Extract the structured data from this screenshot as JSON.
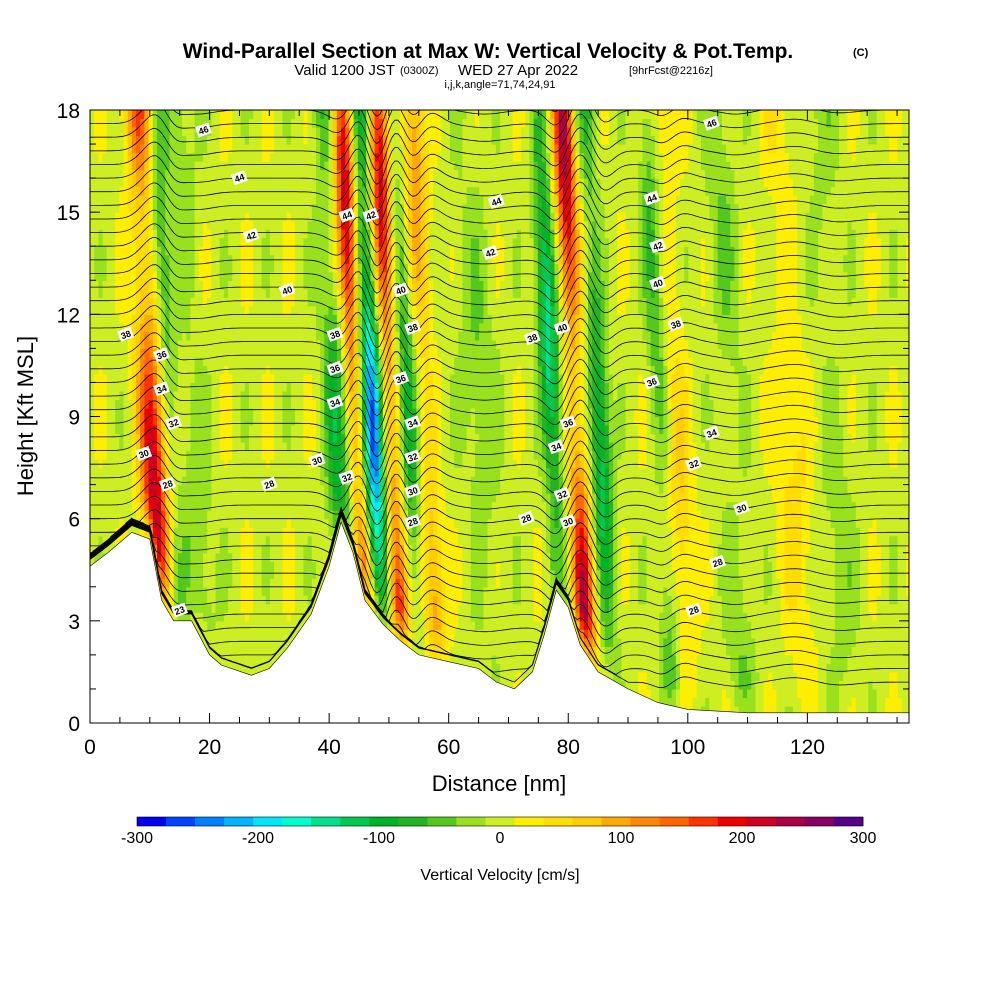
{
  "figure": {
    "title_main": "Wind-Parallel Section at Max W: Vertical Velocity & Pot.Temp.",
    "title_mark": "(C)",
    "subtitle_a": "Valid 1200 JST",
    "subtitle_b": "(0300Z)",
    "subtitle_c": "WED 27 Apr 2022",
    "subtitle_d": "[9hrFcst@2216z]",
    "info": "i,j,k,angle=71,74,24,91"
  },
  "chart_data": {
    "type": "heatmap",
    "xlabel": "Distance [nm]",
    "ylabel": "Height [Kft MSL]",
    "xlim": [
      0,
      137
    ],
    "ylim": [
      0,
      18
    ],
    "x_ticks": [
      "0",
      "20",
      "40",
      "60",
      "80",
      "100",
      "120"
    ],
    "y_ticks": [
      "0",
      "3",
      "6",
      "9",
      "12",
      "15",
      "18"
    ],
    "colorbar": {
      "label": "Vertical Velocity [cm/s]",
      "range": [
        -300,
        300
      ],
      "step": 25,
      "ticks": [
        "-300",
        "-200",
        "-100",
        "0",
        "100",
        "200",
        "300"
      ],
      "colors": [
        "#0000ee",
        "#0044ff",
        "#0080ff",
        "#00b4ff",
        "#00e6ff",
        "#00ffcc",
        "#00e08c",
        "#00c850",
        "#00b428",
        "#22b422",
        "#55c81e",
        "#99e11e",
        "#ccee22",
        "#ffee00",
        "#ffdd00",
        "#ffcc00",
        "#ffaa00",
        "#ff8800",
        "#ff6600",
        "#ff3300",
        "#ee0000",
        "#cc0022",
        "#aa0044",
        "#880066",
        "#550088"
      ]
    },
    "terrain_kft": [
      [
        0,
        4.6
      ],
      [
        3,
        5.0
      ],
      [
        7,
        5.6
      ],
      [
        10,
        5.4
      ],
      [
        12,
        3.6
      ],
      [
        14,
        3.0
      ],
      [
        17,
        3.0
      ],
      [
        20,
        2.0
      ],
      [
        22,
        1.7
      ],
      [
        27,
        1.4
      ],
      [
        30,
        1.6
      ],
      [
        33,
        2.2
      ],
      [
        37,
        3.2
      ],
      [
        40,
        4.6
      ],
      [
        42,
        5.9
      ],
      [
        44,
        5.0
      ],
      [
        46,
        3.6
      ],
      [
        49,
        2.9
      ],
      [
        52,
        2.4
      ],
      [
        55,
        2.0
      ],
      [
        60,
        1.8
      ],
      [
        65,
        1.6
      ],
      [
        68,
        1.2
      ],
      [
        71,
        1.0
      ],
      [
        74,
        1.5
      ],
      [
        76,
        2.6
      ],
      [
        78,
        3.9
      ],
      [
        80,
        3.4
      ],
      [
        82,
        2.3
      ],
      [
        85,
        1.5
      ],
      [
        90,
        1.0
      ],
      [
        95,
        0.6
      ],
      [
        100,
        0.4
      ],
      [
        110,
        0.3
      ],
      [
        137,
        0.3
      ]
    ],
    "w_features": [
      {
        "x": 11,
        "w": 230,
        "xw": 2.2
      },
      {
        "x": 14,
        "w": -80,
        "xw": 1.5
      },
      {
        "x": 18,
        "w": -40,
        "xw": 2.5
      },
      {
        "x": 42,
        "w": -110,
        "xw": 2.0
      },
      {
        "x": 45,
        "w": 230,
        "xw": 1.6
      },
      {
        "x": 48,
        "w": -260,
        "xw": 1.6
      },
      {
        "x": 51,
        "w": 220,
        "xw": 1.5
      },
      {
        "x": 54,
        "w": -100,
        "xw": 1.4
      },
      {
        "x": 57,
        "w": 110,
        "xw": 1.8
      },
      {
        "x": 66,
        "w": -40,
        "xw": 3.0
      },
      {
        "x": 78,
        "w": -160,
        "xw": 1.6
      },
      {
        "x": 82,
        "w": 240,
        "xw": 1.7
      },
      {
        "x": 86,
        "w": -130,
        "xw": 1.6
      },
      {
        "x": 96,
        "w": -70,
        "xw": 1.6
      },
      {
        "x": 99,
        "w": 60,
        "xw": 2.0
      },
      {
        "x": 108,
        "w": -40,
        "xw": 2.5
      },
      {
        "x": 118,
        "w": 45,
        "xw": 3.0
      },
      {
        "x": 125,
        "w": -30,
        "xw": 3.0
      }
    ],
    "contour_labels": [
      {
        "text": "46",
        "x": 19,
        "y": 17.4
      },
      {
        "text": "44",
        "x": 25,
        "y": 16.0
      },
      {
        "text": "42",
        "x": 27,
        "y": 14.3
      },
      {
        "text": "40",
        "x": 33,
        "y": 12.7
      },
      {
        "text": "38",
        "x": 6,
        "y": 11.4
      },
      {
        "text": "36",
        "x": 12,
        "y": 10.8
      },
      {
        "text": "34",
        "x": 12,
        "y": 9.8
      },
      {
        "text": "32",
        "x": 14,
        "y": 8.8
      },
      {
        "text": "30",
        "x": 9,
        "y": 7.9
      },
      {
        "text": "28",
        "x": 13,
        "y": 7.0
      },
      {
        "text": "28",
        "x": 30,
        "y": 7.0
      },
      {
        "text": "30",
        "x": 38,
        "y": 7.7
      },
      {
        "text": "23",
        "x": 15,
        "y": 3.3
      },
      {
        "text": "44",
        "x": 43,
        "y": 14.9
      },
      {
        "text": "42",
        "x": 47,
        "y": 14.9
      },
      {
        "text": "38",
        "x": 41,
        "y": 11.4
      },
      {
        "text": "36",
        "x": 41,
        "y": 10.4
      },
      {
        "text": "34",
        "x": 41,
        "y": 9.4
      },
      {
        "text": "32",
        "x": 43,
        "y": 7.2
      },
      {
        "text": "40",
        "x": 52,
        "y": 12.7
      },
      {
        "text": "38",
        "x": 54,
        "y": 11.6
      },
      {
        "text": "36",
        "x": 52,
        "y": 10.1
      },
      {
        "text": "34",
        "x": 54,
        "y": 8.8
      },
      {
        "text": "32",
        "x": 54,
        "y": 7.8
      },
      {
        "text": "30",
        "x": 54,
        "y": 6.8
      },
      {
        "text": "28",
        "x": 54,
        "y": 5.9
      },
      {
        "text": "44",
        "x": 68,
        "y": 15.3
      },
      {
        "text": "42",
        "x": 67,
        "y": 13.8
      },
      {
        "text": "38",
        "x": 74,
        "y": 11.3
      },
      {
        "text": "40",
        "x": 79,
        "y": 11.6
      },
      {
        "text": "36",
        "x": 80,
        "y": 8.8
      },
      {
        "text": "34",
        "x": 78,
        "y": 8.1
      },
      {
        "text": "32",
        "x": 79,
        "y": 6.7
      },
      {
        "text": "30",
        "x": 80,
        "y": 5.9
      },
      {
        "text": "28",
        "x": 73,
        "y": 6.0
      },
      {
        "text": "46",
        "x": 104,
        "y": 17.6
      },
      {
        "text": "44",
        "x": 94,
        "y": 15.4
      },
      {
        "text": "42",
        "x": 95,
        "y": 14.0
      },
      {
        "text": "40",
        "x": 95,
        "y": 12.9
      },
      {
        "text": "38",
        "x": 98,
        "y": 11.7
      },
      {
        "text": "36",
        "x": 94,
        "y": 10.0
      },
      {
        "text": "34",
        "x": 104,
        "y": 8.5
      },
      {
        "text": "32",
        "x": 101,
        "y": 7.6
      },
      {
        "text": "30",
        "x": 109,
        "y": 6.3
      },
      {
        "text": "28",
        "x": 105,
        "y": 4.7
      },
      {
        "text": "28",
        "x": 101,
        "y": 3.3
      }
    ]
  }
}
